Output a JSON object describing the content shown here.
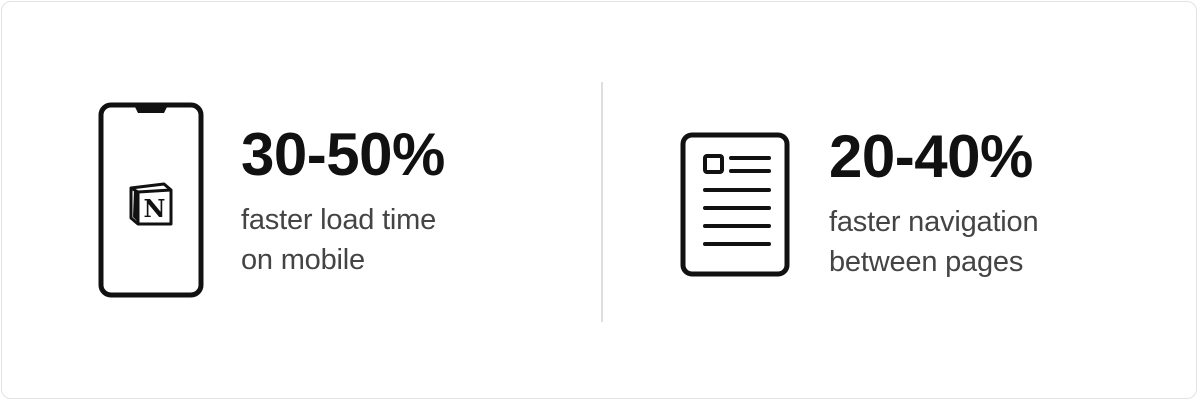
{
  "stats": [
    {
      "icon": "phone-with-notion-logo-icon",
      "logo_letter": "N",
      "value": "30-50%",
      "description_line1": "faster load time",
      "description_line2": "on mobile"
    },
    {
      "icon": "document-page-icon",
      "value": "20-40%",
      "description_line1": "faster navigation",
      "description_line2": "between pages"
    }
  ],
  "colors": {
    "value_text": "#111111",
    "description_text": "#444444",
    "divider": "#dedede",
    "border": "#e3e3e3"
  }
}
